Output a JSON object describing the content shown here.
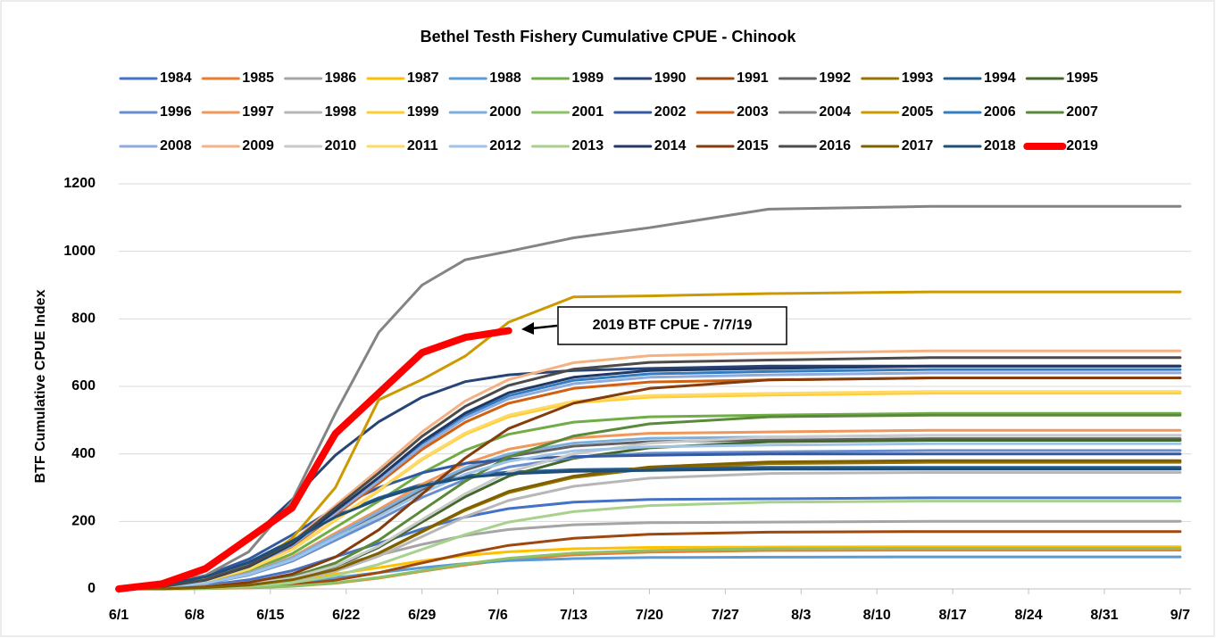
{
  "chart_data": {
    "type": "line",
    "title": "Bethel Testh Fishery Cumulative CPUE - Chinook",
    "y_label": "BTF Cumulative CPUE Index",
    "annotation": "2019 BTF CPUE - 7/7/19",
    "x": [
      0,
      4,
      8,
      12,
      16,
      20,
      24,
      28,
      32,
      36,
      42,
      49,
      60,
      75,
      98
    ],
    "xlim": [
      0,
      99
    ],
    "xticks": [
      {
        "value": 0,
        "label": "6/1"
      },
      {
        "value": 7,
        "label": "6/8"
      },
      {
        "value": 14,
        "label": "6/15"
      },
      {
        "value": 21,
        "label": "6/22"
      },
      {
        "value": 28,
        "label": "6/29"
      },
      {
        "value": 35,
        "label": "7/6"
      },
      {
        "value": 42,
        "label": "7/13"
      },
      {
        "value": 49,
        "label": "7/20"
      },
      {
        "value": 56,
        "label": "7/27"
      },
      {
        "value": 63,
        "label": "8/3"
      },
      {
        "value": 70,
        "label": "8/10"
      },
      {
        "value": 77,
        "label": "8/17"
      },
      {
        "value": 84,
        "label": "8/24"
      },
      {
        "value": 91,
        "label": "8/31"
      },
      {
        "value": 98,
        "label": "9/7"
      }
    ],
    "ylim": [
      0,
      1200
    ],
    "yticks": [
      0,
      200,
      400,
      600,
      800,
      1000,
      1200
    ],
    "grid": true,
    "series": [
      {
        "name": "1984",
        "color": "#4472C4",
        "values": [
          0,
          3,
          11,
          27,
          54,
          95,
          135,
          178,
          213,
          238,
          257,
          265,
          267,
          270,
          270
        ]
      },
      {
        "name": "1985",
        "color": "#ED7D31",
        "values": [
          0,
          0,
          1,
          3,
          8,
          17,
          32,
          52,
          71,
          87,
          101,
          109,
          114,
          115,
          115
        ]
      },
      {
        "name": "1986",
        "color": "#A5A5A5",
        "values": [
          0,
          2,
          8,
          20,
          40,
          70,
          100,
          132,
          158,
          176,
          190,
          196,
          198,
          200,
          200
        ]
      },
      {
        "name": "1987",
        "color": "#FFC000",
        "values": [
          0,
          1,
          5,
          13,
          25,
          44,
          63,
          83,
          99,
          110,
          119,
          123,
          124,
          125,
          125
        ]
      },
      {
        "name": "1988",
        "color": "#5B9BD5",
        "values": [
          0,
          1,
          4,
          10,
          19,
          33,
          48,
          63,
          75,
          84,
          90,
          93,
          94,
          95,
          95
        ]
      },
      {
        "name": "1989",
        "color": "#70AD47",
        "values": [
          0,
          5,
          21,
          52,
          104,
          182,
          260,
          343,
          411,
          458,
          494,
          510,
          515,
          520,
          520
        ]
      },
      {
        "name": "1990",
        "color": "#264478",
        "values": [
          0,
          20,
          66,
          145,
          264,
          396,
          495,
          568,
          614,
          634,
          647,
          653,
          660,
          660,
          660
        ]
      },
      {
        "name": "1991",
        "color": "#9E480E",
        "values": [
          0,
          0,
          2,
          5,
          12,
          26,
          48,
          77,
          105,
          129,
          150,
          162,
          168,
          170,
          170
        ]
      },
      {
        "name": "1992",
        "color": "#636363",
        "values": [
          0,
          4,
          18,
          45,
          89,
          156,
          223,
          294,
          352,
          392,
          423,
          436,
          441,
          445,
          445
        ]
      },
      {
        "name": "1993",
        "color": "#997300",
        "values": [
          0,
          0,
          4,
          11,
          26,
          56,
          105,
          169,
          233,
          285,
          330,
          356,
          371,
          375,
          375
        ]
      },
      {
        "name": "1994",
        "color": "#255E91",
        "values": [
          0,
          11,
          36,
          79,
          144,
          216,
          270,
          310,
          335,
          346,
          353,
          356,
          360,
          360,
          360
        ]
      },
      {
        "name": "1995",
        "color": "#43682B",
        "values": [
          0,
          0,
          4,
          13,
          31,
          66,
          123,
          198,
          273,
          334,
          387,
          418,
          436,
          440,
          440
        ]
      },
      {
        "name": "1996",
        "color": "#698ED0",
        "values": [
          0,
          4,
          16,
          41,
          82,
          144,
          205,
          271,
          324,
          361,
          390,
          402,
          406,
          410,
          410
        ]
      },
      {
        "name": "1997",
        "color": "#F1975A",
        "values": [
          0,
          5,
          19,
          47,
          94,
          165,
          235,
          310,
          371,
          414,
          447,
          461,
          465,
          470,
          470
        ]
      },
      {
        "name": "1998",
        "color": "#B7B7B7",
        "values": [
          0,
          0,
          3,
          10,
          24,
          52,
          97,
          155,
          214,
          262,
          304,
          328,
          342,
          345,
          345
        ]
      },
      {
        "name": "1999",
        "color": "#FFCD33",
        "values": [
          0,
          6,
          23,
          58,
          116,
          203,
          290,
          383,
          458,
          510,
          551,
          568,
          574,
          580,
          580
        ]
      },
      {
        "name": "2000",
        "color": "#7CAFDD",
        "values": [
          0,
          5,
          18,
          46,
          91,
          159,
          228,
          300,
          359,
          400,
          432,
          446,
          450,
          455,
          455
        ]
      },
      {
        "name": "2001",
        "color": "#8CC168",
        "values": [
          0,
          0,
          1,
          4,
          8,
          18,
          34,
          54,
          74,
          91,
          106,
          114,
          119,
          120,
          120
        ]
      },
      {
        "name": "2002",
        "color": "#335AA1",
        "values": [
          0,
          12,
          40,
          88,
          160,
          240,
          300,
          344,
          372,
          384,
          392,
          396,
          400,
          400,
          400
        ]
      },
      {
        "name": "2003",
        "color": "#D26012",
        "values": [
          0,
          6,
          25,
          63,
          125,
          219,
          313,
          413,
          494,
          550,
          594,
          613,
          619,
          625,
          625
        ]
      },
      {
        "name": "2004",
        "color": "#848484",
        "values": [
          0,
          10,
          40,
          110,
          260,
          520,
          760,
          900,
          975,
          1000,
          1040,
          1070,
          1125,
          1133,
          1133
        ]
      },
      {
        "name": "2005",
        "color": "#CC9A00",
        "values": [
          0,
          5,
          20,
          60,
          150,
          300,
          560,
          620,
          690,
          790,
          865,
          868,
          875,
          880,
          880
        ]
      },
      {
        "name": "2006",
        "color": "#327DC2",
        "values": [
          0,
          7,
          26,
          65,
          130,
          228,
          325,
          429,
          514,
          572,
          618,
          637,
          644,
          650,
          650
        ]
      },
      {
        "name": "2007",
        "color": "#5A8A39",
        "values": [
          0,
          0,
          5,
          15,
          36,
          77,
          144,
          232,
          319,
          391,
          453,
          489,
          510,
          515,
          515
        ]
      },
      {
        "name": "2008",
        "color": "#8FAADC",
        "values": [
          0,
          6,
          26,
          64,
          128,
          224,
          320,
          422,
          506,
          563,
          608,
          627,
          634,
          640,
          640
        ]
      },
      {
        "name": "2009",
        "color": "#F4B183",
        "values": [
          0,
          7,
          28,
          71,
          141,
          247,
          353,
          465,
          557,
          620,
          670,
          691,
          698,
          705,
          705
        ]
      },
      {
        "name": "2010",
        "color": "#C9C9C9",
        "values": [
          0,
          0,
          5,
          14,
          32,
          68,
          127,
          205,
          282,
          346,
          400,
          432,
          450,
          455,
          455
        ]
      },
      {
        "name": "2011",
        "color": "#FFD966",
        "values": [
          0,
          6,
          23,
          59,
          117,
          205,
          293,
          386,
          462,
          515,
          556,
          573,
          579,
          585,
          585
        ]
      },
      {
        "name": "2012",
        "color": "#9DC3E6",
        "values": [
          0,
          4,
          17,
          43,
          86,
          151,
          215,
          284,
          340,
          378,
          409,
          421,
          426,
          430,
          430
        ]
      },
      {
        "name": "2013",
        "color": "#A9D18E",
        "values": [
          0,
          0,
          3,
          8,
          18,
          39,
          73,
          117,
          161,
          198,
          229,
          247,
          257,
          260,
          260
        ]
      },
      {
        "name": "2014",
        "color": "#203864",
        "values": [
          0,
          7,
          26,
          66,
          132,
          231,
          330,
          436,
          521,
          581,
          627,
          647,
          653,
          660,
          660
        ]
      },
      {
        "name": "2015",
        "color": "#843C0C",
        "values": [
          0,
          0,
          6,
          19,
          44,
          94,
          175,
          281,
          388,
          475,
          550,
          594,
          619,
          625,
          625
        ]
      },
      {
        "name": "2016",
        "color": "#4B4B4B",
        "values": [
          0,
          7,
          27,
          69,
          137,
          240,
          343,
          452,
          541,
          603,
          651,
          671,
          678,
          685,
          685
        ]
      },
      {
        "name": "2017",
        "color": "#7F6000",
        "values": [
          0,
          0,
          4,
          11,
          27,
          57,
          106,
          171,
          236,
          289,
          334,
          361,
          376,
          380,
          380
        ]
      },
      {
        "name": "2018",
        "color": "#1F4E79",
        "values": [
          0,
          11,
          36,
          78,
          142,
          213,
          266,
          305,
          330,
          341,
          348,
          351,
          355,
          355,
          355
        ]
      },
      {
        "name": "2019",
        "color": "#FF0000",
        "values": [
          0,
          15,
          60,
          150,
          240,
          460,
          580,
          700,
          745,
          765,
          null,
          null,
          null,
          null,
          null
        ]
      }
    ]
  }
}
